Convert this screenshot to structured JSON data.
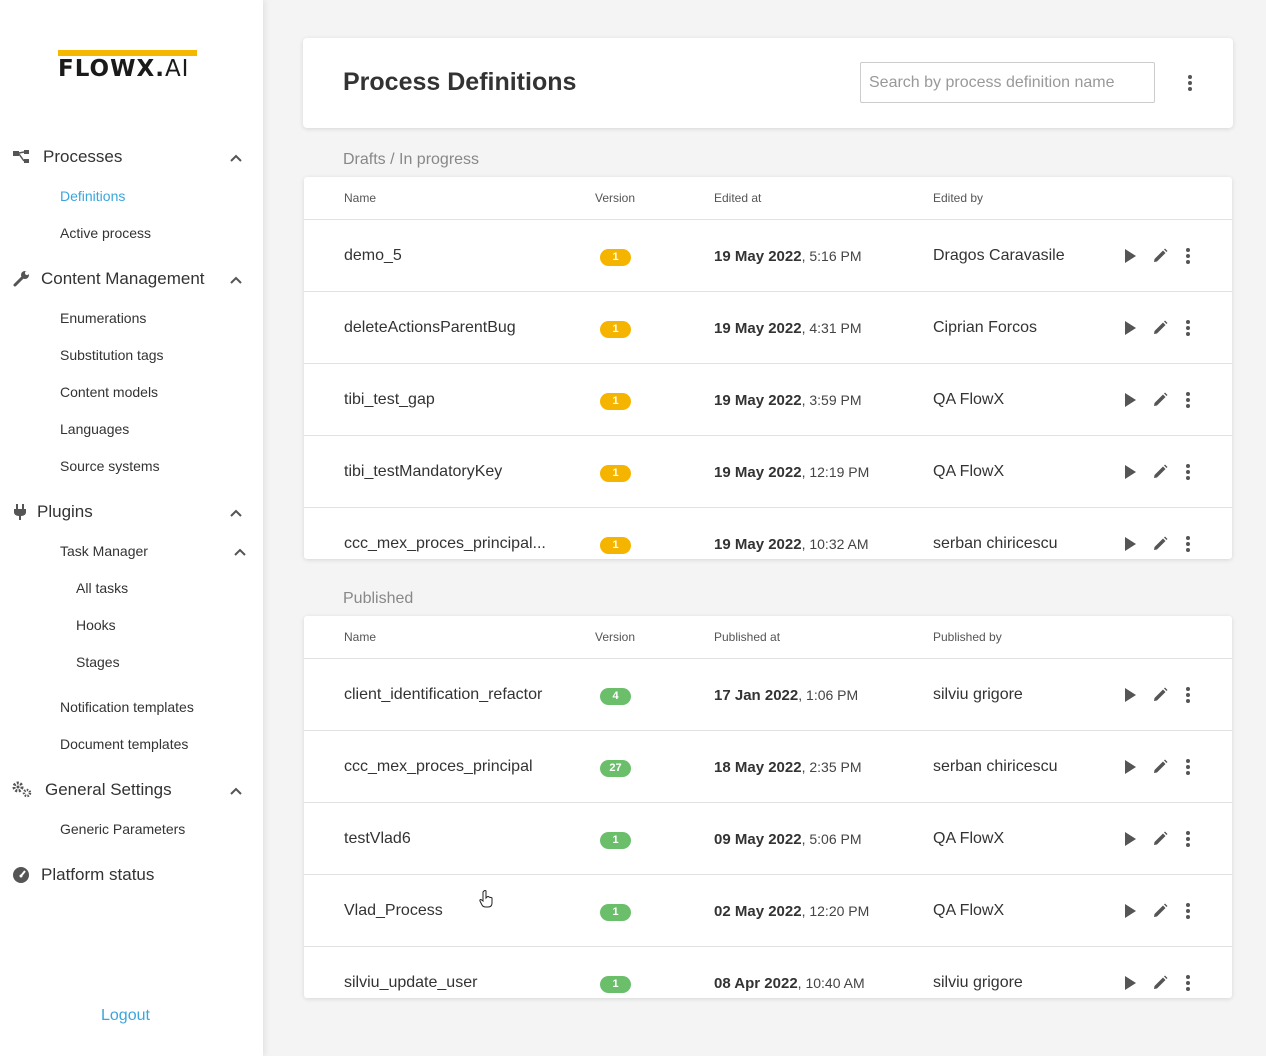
{
  "brand": {
    "logo_main": "FLOWX",
    "logo_dot": ".",
    "logo_suffix": "AI"
  },
  "sidebar": {
    "sections": [
      {
        "label": "Processes",
        "icon": "process-icon",
        "items": [
          "Definitions",
          "Active process"
        ]
      },
      {
        "label": "Content Management",
        "icon": "wrench-icon",
        "items": [
          "Enumerations",
          "Substitution tags",
          "Content models",
          "Languages",
          "Source systems"
        ]
      },
      {
        "label": "Plugins",
        "icon": "plug-icon",
        "subsection": {
          "label": "Task Manager",
          "items": [
            "All tasks",
            "Hooks",
            "Stages"
          ]
        },
        "items": [
          "Notification templates",
          "Document templates"
        ]
      },
      {
        "label": "General Settings",
        "icon": "gears-icon",
        "items": [
          "Generic Parameters"
        ]
      },
      {
        "label": "Platform status",
        "icon": "gauge-icon",
        "items": []
      }
    ],
    "active_item": "Definitions",
    "logout": "Logout"
  },
  "header": {
    "title": "Process Definitions",
    "search_placeholder": "Search by process definition name"
  },
  "drafts": {
    "title": "Drafts / In progress",
    "columns": [
      "Name",
      "Version",
      "Edited at",
      "Edited by"
    ],
    "rows": [
      {
        "name": "demo_5",
        "version": "1",
        "date": "19 May 2022",
        "time": ", 5:16 PM",
        "user": "Dragos Caravasile"
      },
      {
        "name": "deleteActionsParentBug",
        "version": "1",
        "date": "19 May 2022",
        "time": ", 4:31 PM",
        "user": "Ciprian Forcos"
      },
      {
        "name": "tibi_test_gap",
        "version": "1",
        "date": "19 May 2022",
        "time": ", 3:59 PM",
        "user": "QA FlowX"
      },
      {
        "name": "tibi_testMandatoryKey",
        "version": "1",
        "date": "19 May 2022",
        "time": ", 12:19 PM",
        "user": "QA FlowX"
      },
      {
        "name": "ccc_mex_proces_principal...",
        "version": "1",
        "date": "19 May 2022",
        "time": ", 10:32 AM",
        "user": "serban chiricescu"
      }
    ]
  },
  "published": {
    "title": "Published",
    "columns": [
      "Name",
      "Version",
      "Published at",
      "Published by"
    ],
    "rows": [
      {
        "name": "client_identification_refactor",
        "version": "4",
        "date": "17 Jan 2022",
        "time": ", 1:06 PM",
        "user": "silviu grigore"
      },
      {
        "name": "ccc_mex_proces_principal",
        "version": "27",
        "date": "18 May 2022",
        "time": ", 2:35 PM",
        "user": "serban chiricescu"
      },
      {
        "name": "testVlad6",
        "version": "1",
        "date": "09 May 2022",
        "time": ", 5:06 PM",
        "user": "QA FlowX"
      },
      {
        "name": "Vlad_Process",
        "version": "1",
        "date": "02 May 2022",
        "time": ", 12:20 PM",
        "user": "QA FlowX"
      },
      {
        "name": "silviu_update_user",
        "version": "1",
        "date": "08 Apr 2022",
        "time": ", 10:40 AM",
        "user": "silviu grigore"
      }
    ]
  },
  "colors": {
    "accent": "#3aa6dd",
    "draft_badge": "#f5b400",
    "published_badge": "#6bbf6a",
    "logo_bar": "#f5b800"
  }
}
